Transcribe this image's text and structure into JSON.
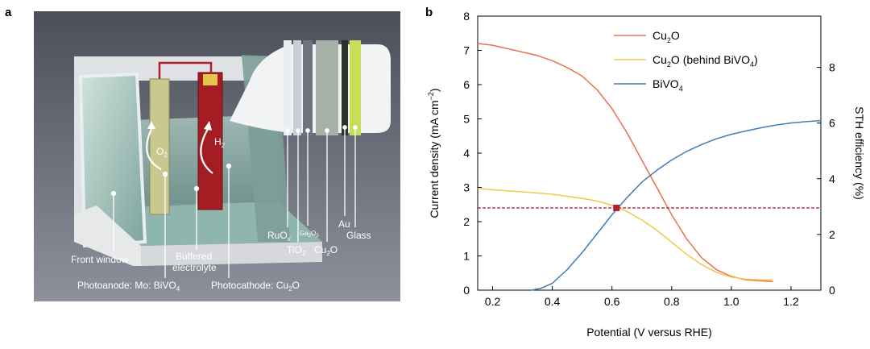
{
  "panel_a": {
    "label": "a",
    "labels": {
      "o2": "O",
      "o2_sub": "2",
      "h2": "H",
      "h2_sub": "2",
      "ruox": "RuO",
      "ruox_sub": "x",
      "ga2o3_a": "Ga",
      "ga2o3_b": "2",
      "ga2o3_c": "O",
      "ga2o3_d": "3",
      "tio2": "TiO",
      "tio2_sub": "2",
      "cu2o_a": "Cu",
      "cu2o_b": "2",
      "cu2o_c": "O",
      "au": "Au",
      "glass": "Glass",
      "front_window": "Front window",
      "buffered": "Buffered",
      "electrolyte": "electrolyte",
      "photoanode": "Photoanode: Mo: BiVO",
      "photoanode_sub": "4",
      "photocathode": "Photocathode: Cu",
      "photocathode_sub": "2",
      "photocathode_end": "O"
    }
  },
  "panel_b": {
    "label": "b"
  },
  "colors": {
    "cu2o": "#e8714f",
    "cu2o_behind": "#f2c84b",
    "bivo4": "#3f7db8",
    "dashed": "#a3182a",
    "marker": "#b0202f"
  },
  "chart_data": {
    "type": "line",
    "xlabel": "Potential (V versus RHE)",
    "ylabel": "Current density (mA cm",
    "ylabel_sup": "−2",
    "ylabel_end": ")",
    "y2label": "STH efficiency (%)",
    "xlim": [
      0.15,
      1.3
    ],
    "ylim": [
      0,
      8
    ],
    "y2lim": [
      0,
      9.84
    ],
    "xticks": [
      0.2,
      0.4,
      0.6,
      0.8,
      1.0,
      1.2
    ],
    "xtick_labels": [
      "0.2",
      "0.4",
      "0.6",
      "0.8",
      "1.0",
      "1.2"
    ],
    "yticks": [
      0,
      1,
      2,
      3,
      4,
      5,
      6,
      7,
      8
    ],
    "ytick_labels": [
      "0",
      "1",
      "2",
      "3",
      "4",
      "5",
      "6",
      "7",
      "8"
    ],
    "y2ticks": [
      0,
      2,
      4,
      6,
      8
    ],
    "y2tick_labels": [
      "0",
      "2",
      "4",
      "6",
      "8"
    ],
    "legend": [
      {
        "name": "Cu",
        "sub": "2",
        "rest": "O",
        "key": "cu2o"
      },
      {
        "name": "Cu",
        "sub": "2",
        "rest": "O (behind BiVO",
        "sub2": "4",
        "rest2": ")",
        "key": "cu2o_behind"
      },
      {
        "name": "BiVO",
        "sub": "4",
        "rest": "",
        "key": "bivo4"
      }
    ],
    "series": [
      {
        "name": "Cu2O",
        "key": "cu2o",
        "x": [
          0.15,
          0.2,
          0.25,
          0.3,
          0.35,
          0.4,
          0.45,
          0.5,
          0.55,
          0.6,
          0.65,
          0.7,
          0.75,
          0.8,
          0.85,
          0.9,
          0.95,
          1.0,
          1.05,
          1.1,
          1.14
        ],
        "y": [
          7.2,
          7.15,
          7.05,
          6.95,
          6.85,
          6.7,
          6.5,
          6.25,
          5.85,
          5.3,
          4.6,
          3.8,
          3.0,
          2.2,
          1.5,
          0.95,
          0.6,
          0.4,
          0.3,
          0.27,
          0.25
        ]
      },
      {
        "name": "Cu2O (behind BiVO4)",
        "key": "cu2o_behind",
        "x": [
          0.15,
          0.2,
          0.3,
          0.4,
          0.5,
          0.55,
          0.6,
          0.65,
          0.7,
          0.75,
          0.8,
          0.85,
          0.9,
          0.95,
          1.0,
          1.05,
          1.1,
          1.14
        ],
        "y": [
          2.97,
          2.93,
          2.87,
          2.8,
          2.68,
          2.6,
          2.48,
          2.3,
          2.05,
          1.75,
          1.4,
          1.05,
          0.75,
          0.52,
          0.38,
          0.32,
          0.3,
          0.3
        ]
      },
      {
        "name": "BiVO4",
        "key": "bivo4",
        "x": [
          0.33,
          0.36,
          0.4,
          0.45,
          0.5,
          0.55,
          0.6,
          0.65,
          0.7,
          0.75,
          0.8,
          0.85,
          0.9,
          0.95,
          1.0,
          1.05,
          1.1,
          1.15,
          1.2,
          1.25,
          1.3
        ],
        "y": [
          0.0,
          0.05,
          0.2,
          0.6,
          1.1,
          1.65,
          2.2,
          2.7,
          3.15,
          3.5,
          3.8,
          4.05,
          4.25,
          4.42,
          4.55,
          4.65,
          4.74,
          4.82,
          4.88,
          4.92,
          4.95
        ]
      }
    ],
    "operating_point": {
      "x": 0.615,
      "y": 2.4
    }
  }
}
